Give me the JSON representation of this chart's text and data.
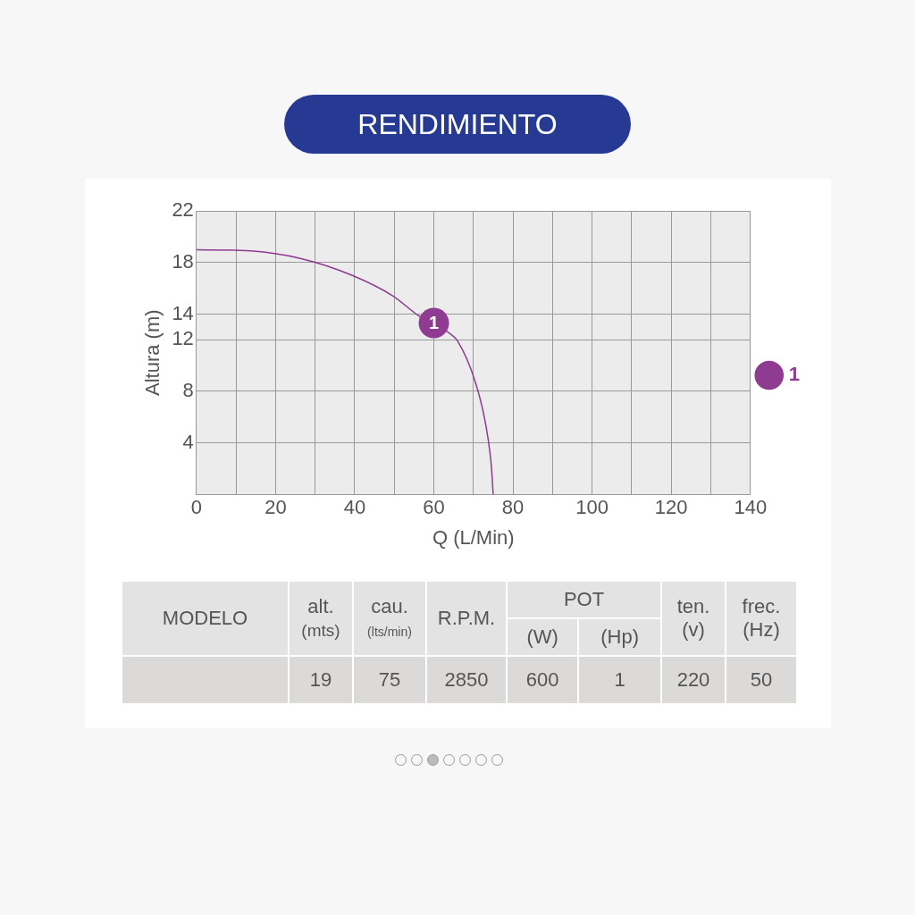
{
  "chart_data": [
    {
      "type": "line",
      "title": "RENDIMIENTO",
      "xlabel": "Q (L/Min)",
      "ylabel": "Altura (m)",
      "x": [
        0,
        13.7,
        26.5,
        39.4,
        49.7,
        56,
        64,
        66,
        70.4,
        73,
        74.5,
        75
      ],
      "series": [
        {
          "name": "1",
          "color": "#8e3b91",
          "values": [
            19,
            18.9,
            18.3,
            17,
            15.4,
            13.9,
            12.5,
            11.9,
            8.8,
            5.6,
            2.3,
            0
          ]
        }
      ],
      "xlim": [
        0,
        140
      ],
      "ylim": [
        0,
        22
      ],
      "xticks": [
        0,
        {
          "value": 10,
          "label": null
        },
        20,
        {
          "value": 30,
          "label": null
        },
        40,
        {
          "value": 50,
          "label": null
        },
        60,
        {
          "value": 70,
          "label": null
        },
        80,
        {
          "value": 90,
          "label": null
        },
        100,
        {
          "value": 110,
          "label": null
        },
        120,
        {
          "value": 130,
          "label": null
        },
        140
      ],
      "yticks": [
        4,
        8,
        12,
        14,
        18,
        22
      ],
      "grid": true,
      "legend": "right",
      "marker": "none",
      "line_style": "solid",
      "annotations": [
        {
          "text": "1",
          "x": 60,
          "y": 13.3
        }
      ]
    },
    {
      "type": "other",
      "annotations": [
        "MODELO",
        "alt.",
        "(mts)",
        "cau.",
        "(lts/min)",
        "R.P.M.",
        "POT",
        "(W)",
        "(Hp)",
        "ten.",
        "(v)",
        "frec.",
        "(Hz)",
        "19",
        "75",
        "2850",
        "600",
        "1",
        "220",
        "50"
      ]
    }
  ]
}
